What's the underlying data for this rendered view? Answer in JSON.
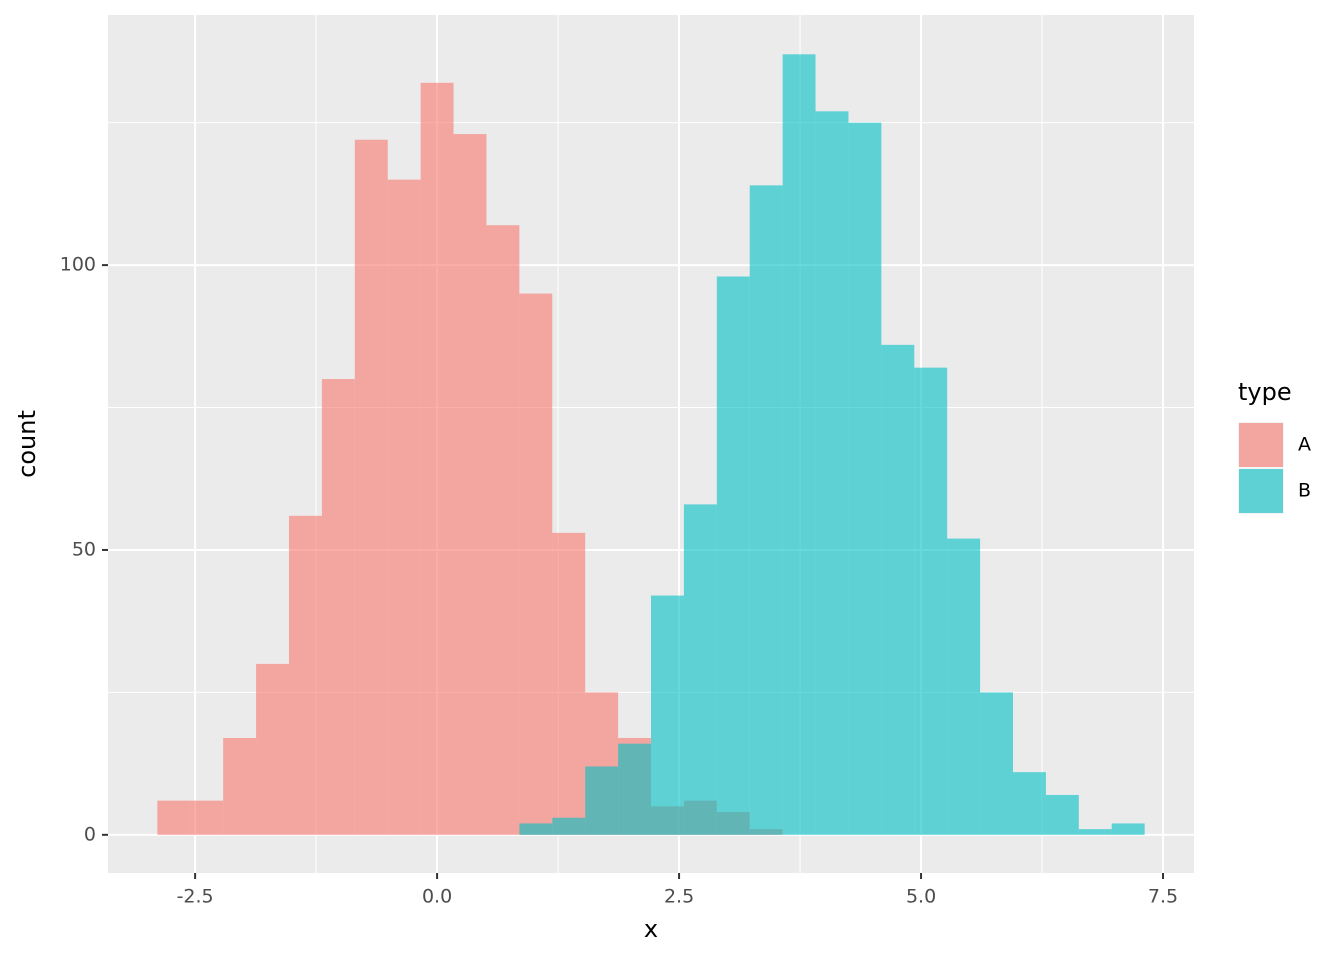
{
  "chart_data": {
    "type": "histogram",
    "xlabel": "x",
    "ylabel": "count",
    "bins": [
      -2.89,
      -2.55,
      -2.21,
      -1.87,
      -1.53,
      -1.19,
      -0.85,
      -0.51,
      -0.17,
      0.17,
      0.51,
      0.85,
      1.19,
      1.53,
      1.87,
      2.21,
      2.55,
      2.89,
      3.23,
      3.57,
      3.91,
      4.25,
      4.59,
      4.93,
      5.27,
      5.61,
      5.95,
      6.29,
      6.63,
      6.97,
      7.31
    ],
    "series": [
      {
        "name": "A",
        "color": "#F8766D",
        "values": [
          6,
          6,
          17,
          30,
          56,
          80,
          122,
          115,
          132,
          123,
          107,
          95,
          53,
          25,
          17,
          5,
          6,
          4,
          1,
          0,
          0,
          0,
          0,
          0,
          0,
          0,
          0,
          0,
          0,
          0
        ]
      },
      {
        "name": "B",
        "color": "#00BFC4",
        "values": [
          0,
          0,
          0,
          0,
          0,
          0,
          0,
          0,
          0,
          0,
          0,
          2,
          3,
          12,
          16,
          42,
          58,
          98,
          114,
          137,
          127,
          125,
          86,
          82,
          52,
          25,
          11,
          7,
          1,
          2
        ]
      }
    ],
    "opacity": 0.6,
    "legend_title": "type",
    "xlim": [
      -3.4,
      7.82
    ],
    "ylim": [
      -6.7,
      143.9
    ],
    "xticks": [
      -2.5,
      {
        "value": 0,
        "label": "0.0"
      },
      2.5,
      {
        "value": 5,
        "label": "5.0"
      },
      7.5
    ],
    "xminor": [
      -1.25,
      1.25,
      3.75,
      6.25
    ],
    "yticks": [
      0,
      50,
      100
    ],
    "yminor": [
      25,
      75,
      125
    ],
    "grid": true
  }
}
